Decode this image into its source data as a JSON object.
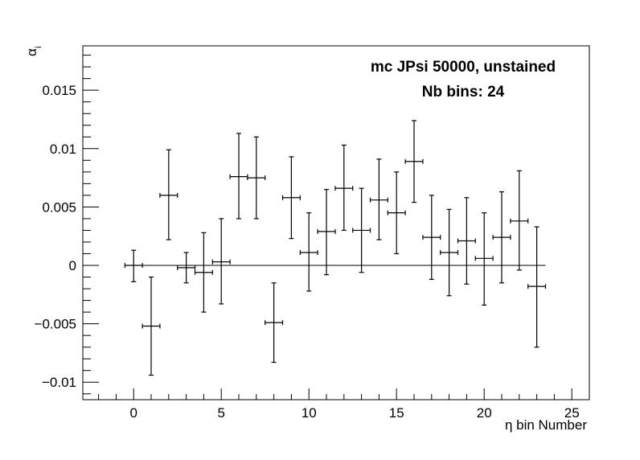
{
  "chart_data": {
    "type": "scatter",
    "title": "",
    "annotations": [
      "mc JPsi 50000, unstained",
      "Nb bins: 24"
    ],
    "xlabel": "η bin Number",
    "ylabel": "α",
    "ylabel_subscript": "i",
    "xlim": [
      -2.9,
      26.0
    ],
    "ylim": [
      -0.0115,
      0.0188
    ],
    "xticks": [
      0,
      5,
      10,
      15,
      20,
      25
    ],
    "xtick_labels": [
      "0",
      "5",
      "10",
      "15",
      "20",
      "25"
    ],
    "yticks": [
      -0.01,
      -0.005,
      0,
      0.005,
      0.01,
      0.015
    ],
    "ytick_labels": [
      "−0.01",
      "−0.005",
      "0",
      "0.005",
      "0.01",
      "0.015"
    ],
    "reference_line": {
      "y": 0,
      "x_from": -0.5,
      "x_to": 23.5
    },
    "points": [
      {
        "x": 0,
        "y": 0.0,
        "xerr": 0.5,
        "yerr_low": 0.0014,
        "yerr_high": 0.0013
      },
      {
        "x": 1,
        "y": -0.0052,
        "xerr": 0.5,
        "yerr_low": 0.0042,
        "yerr_high": 0.0042
      },
      {
        "x": 2,
        "y": 0.006,
        "xerr": 0.5,
        "yerr_low": 0.0038,
        "yerr_high": 0.0039
      },
      {
        "x": 3,
        "y": -0.0002,
        "xerr": 0.5,
        "yerr_low": 0.0013,
        "yerr_high": 0.0013
      },
      {
        "x": 4,
        "y": -0.0006,
        "xerr": 0.5,
        "yerr_low": 0.0034,
        "yerr_high": 0.0034
      },
      {
        "x": 5,
        "y": 0.0003,
        "xerr": 0.5,
        "yerr_low": 0.0036,
        "yerr_high": 0.0037
      },
      {
        "x": 6,
        "y": 0.0076,
        "xerr": 0.5,
        "yerr_low": 0.0036,
        "yerr_high": 0.0037
      },
      {
        "x": 7,
        "y": 0.0075,
        "xerr": 0.5,
        "yerr_low": 0.0035,
        "yerr_high": 0.0035
      },
      {
        "x": 8,
        "y": -0.0049,
        "xerr": 0.5,
        "yerr_low": 0.0034,
        "yerr_high": 0.0034
      },
      {
        "x": 9,
        "y": 0.0058,
        "xerr": 0.5,
        "yerr_low": 0.0035,
        "yerr_high": 0.0035
      },
      {
        "x": 10,
        "y": 0.0011,
        "xerr": 0.5,
        "yerr_low": 0.0033,
        "yerr_high": 0.0034
      },
      {
        "x": 11,
        "y": 0.0029,
        "xerr": 0.5,
        "yerr_low": 0.0037,
        "yerr_high": 0.0036
      },
      {
        "x": 12,
        "y": 0.0066,
        "xerr": 0.5,
        "yerr_low": 0.0036,
        "yerr_high": 0.0037
      },
      {
        "x": 13,
        "y": 0.003,
        "xerr": 0.5,
        "yerr_low": 0.0036,
        "yerr_high": 0.0036
      },
      {
        "x": 14,
        "y": 0.0056,
        "xerr": 0.5,
        "yerr_low": 0.0034,
        "yerr_high": 0.0035
      },
      {
        "x": 15,
        "y": 0.0045,
        "xerr": 0.5,
        "yerr_low": 0.0035,
        "yerr_high": 0.0035
      },
      {
        "x": 16,
        "y": 0.0089,
        "xerr": 0.5,
        "yerr_low": 0.0035,
        "yerr_high": 0.0035
      },
      {
        "x": 17,
        "y": 0.0024,
        "xerr": 0.5,
        "yerr_low": 0.0036,
        "yerr_high": 0.0036
      },
      {
        "x": 18,
        "y": 0.0011,
        "xerr": 0.5,
        "yerr_low": 0.0037,
        "yerr_high": 0.0037
      },
      {
        "x": 19,
        "y": 0.0021,
        "xerr": 0.5,
        "yerr_low": 0.0037,
        "yerr_high": 0.0037
      },
      {
        "x": 20,
        "y": 0.0006,
        "xerr": 0.5,
        "yerr_low": 0.004,
        "yerr_high": 0.0039
      },
      {
        "x": 21,
        "y": 0.0024,
        "xerr": 0.5,
        "yerr_low": 0.0039,
        "yerr_high": 0.0039
      },
      {
        "x": 22,
        "y": 0.0038,
        "xerr": 0.5,
        "yerr_low": 0.0042,
        "yerr_high": 0.0043
      },
      {
        "x": 23,
        "y": -0.0018,
        "xerr": 0.5,
        "yerr_low": 0.0052,
        "yerr_high": 0.0051
      }
    ],
    "grid": false,
    "legend": "none",
    "colors": {
      "marker": "#000000",
      "axis": "#000000",
      "background": "#ffffff"
    }
  }
}
